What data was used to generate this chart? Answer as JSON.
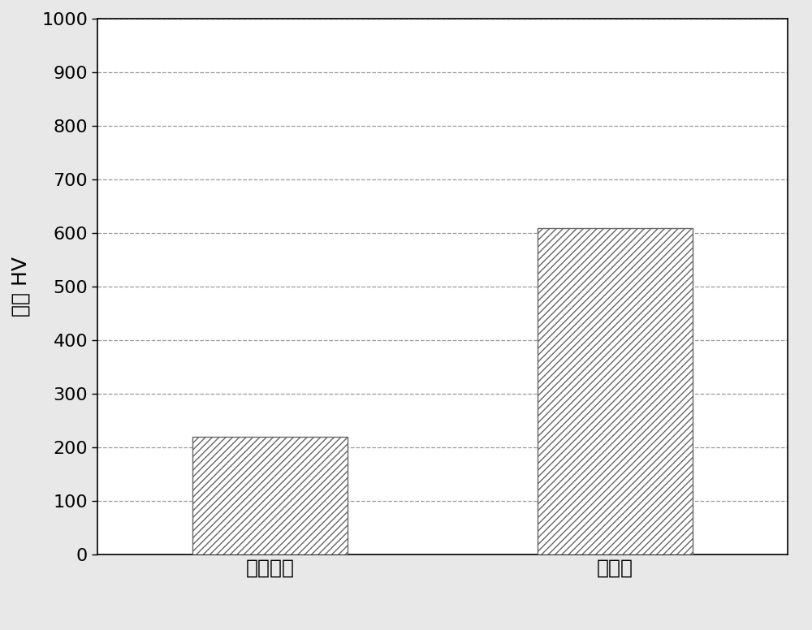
{
  "categories": [
    "电磁钔板",
    "非晶板"
  ],
  "values": [
    220,
    610
  ],
  "bar_color": "white",
  "hatch": "////",
  "ylabel": "硬度 HV",
  "ylim": [
    0,
    1000
  ],
  "yticks": [
    0,
    100,
    200,
    300,
    400,
    500,
    600,
    700,
    800,
    900,
    1000
  ],
  "grid_color": "#999999",
  "grid_style": "--",
  "bar_edge_color": "#666666",
  "ylabel_fontsize": 18,
  "tick_fontsize": 16,
  "xlabel_fontsize": 18,
  "background_color": "#ffffff",
  "figure_background": "#e8e8e8",
  "bar_positions": [
    1,
    3
  ],
  "xlim": [
    0,
    4
  ],
  "bar_width": 0.9
}
